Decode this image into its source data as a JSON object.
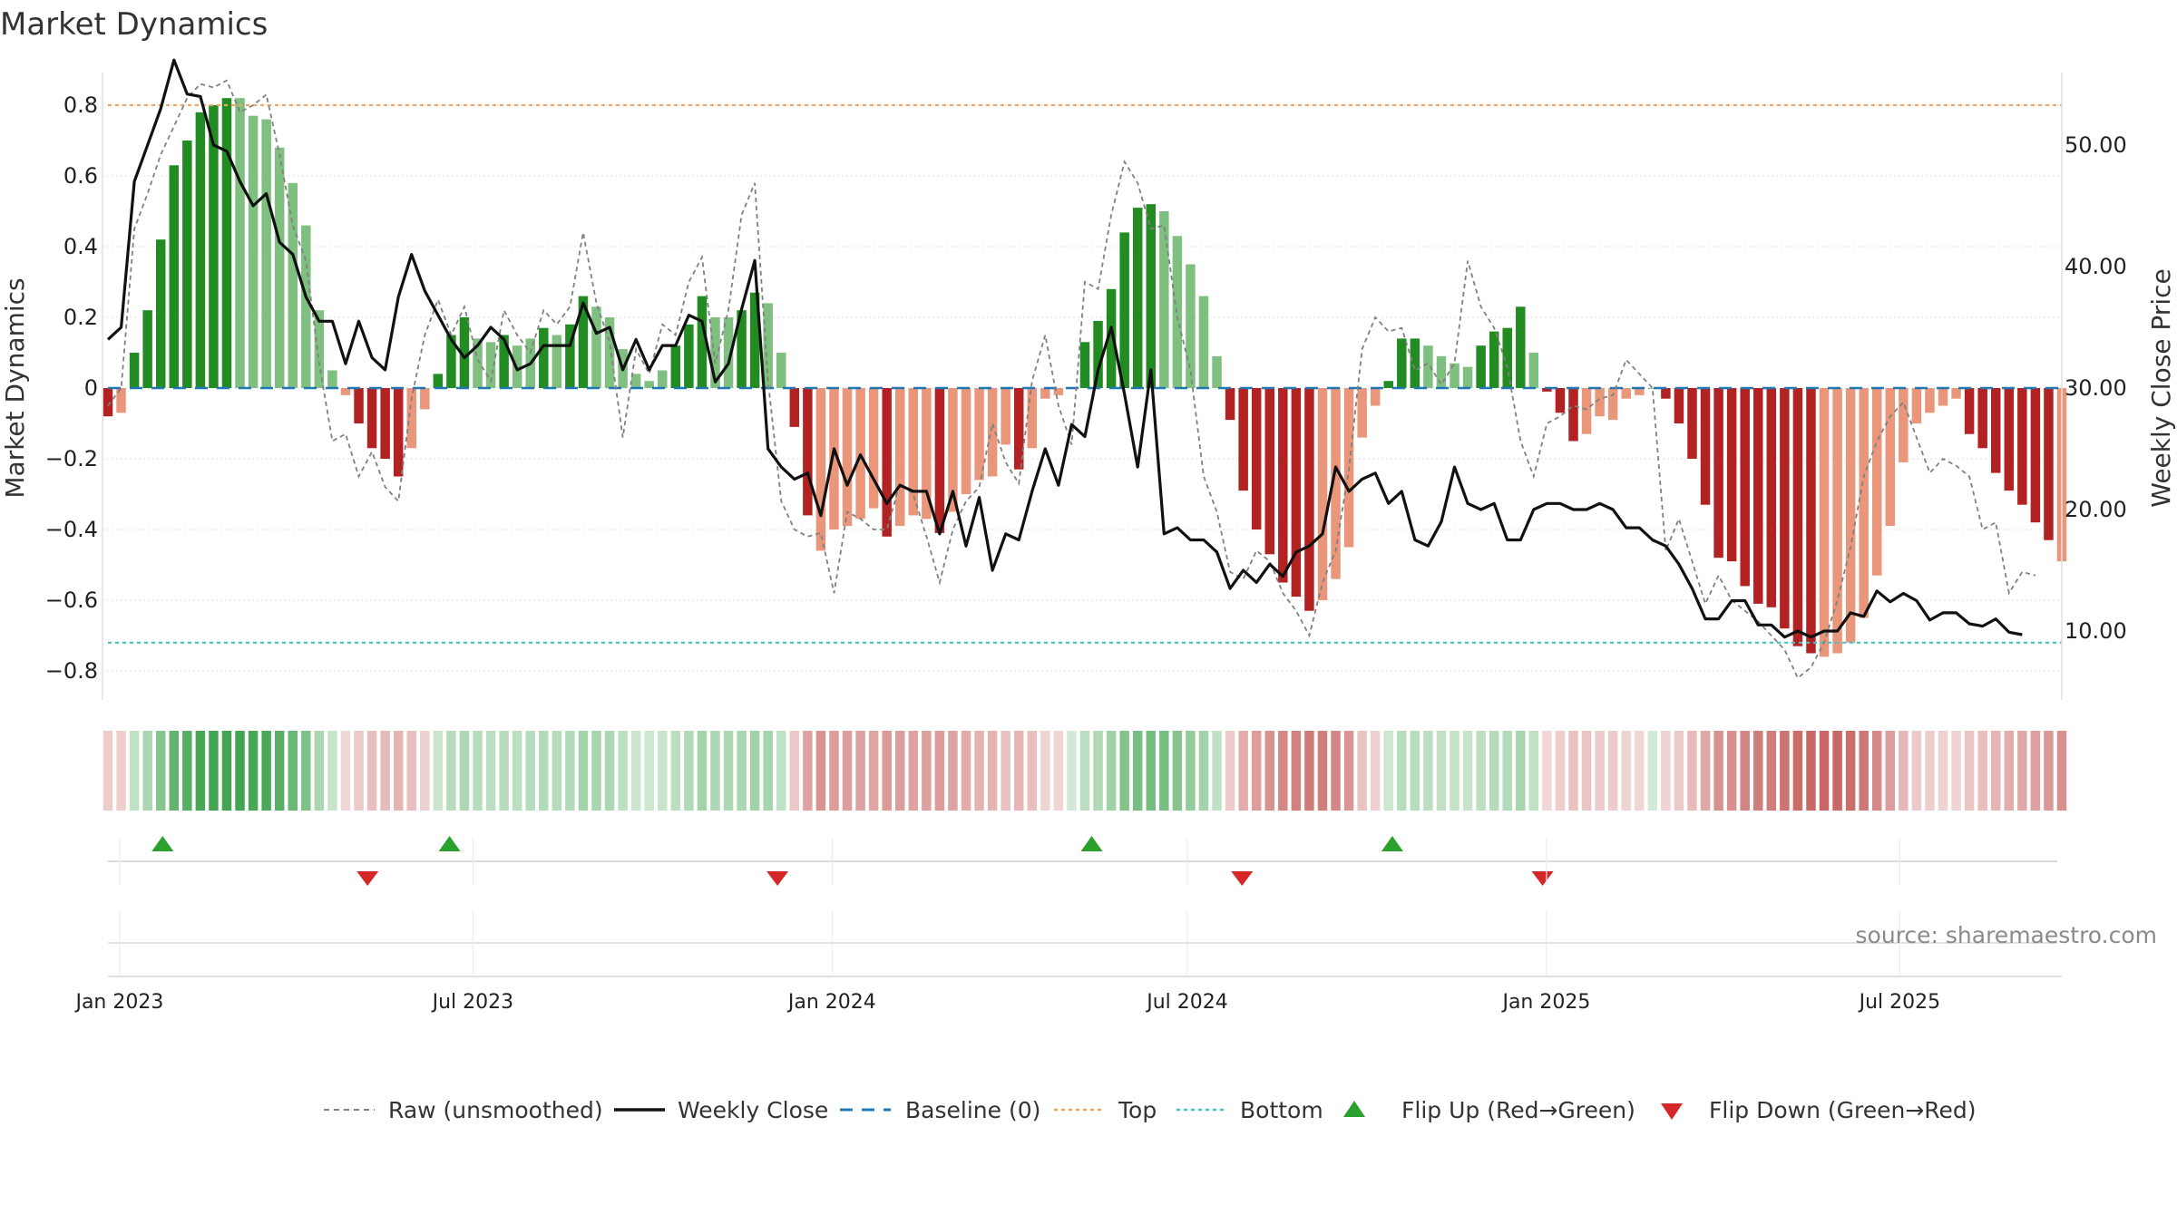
{
  "chart_data": {
    "type": "bar",
    "title": "Market Dynamics",
    "ylabel_left": "Market Dynamics",
    "ylabel_right": "Weekly Close Price",
    "ylim_left": [
      -0.9,
      0.9
    ],
    "ylim_right": [
      7.0,
      57.0
    ],
    "yticks_left": [
      "0.8",
      "0.6",
      "0.4",
      "0.2",
      "0",
      "−0.2",
      "−0.4",
      "−0.6",
      "−0.8"
    ],
    "yticks_left_values": [
      0.8,
      0.6,
      0.4,
      0.2,
      0,
      -0.2,
      -0.4,
      -0.6,
      -0.8
    ],
    "yticks_right": [
      "50.00",
      "40.00",
      "30.00",
      "20.00",
      "10.00"
    ],
    "yticks_right_values": [
      50,
      40,
      30,
      20,
      10
    ],
    "x_start": "2022-12-26",
    "x_end": "2025-09-22",
    "x_tick_labels": [
      "Jan 2023",
      "Jul 2023",
      "Jan 2024",
      "Jul 2024",
      "Jan 2025",
      "Jul 2025"
    ],
    "x_tick_dates": [
      "2023-01-01",
      "2023-07-01",
      "2024-01-01",
      "2024-07-01",
      "2025-01-01",
      "2025-07-01"
    ],
    "top_line": 0.8,
    "bottom_line": -0.72,
    "baseline": 0,
    "colors": {
      "strong_green": "#228b22",
      "light_green": "#7fbf7f",
      "strong_red": "#b22222",
      "light_red": "#e9967a",
      "raw": "#808080",
      "close": "#111111",
      "baseline": "#1f77b4",
      "top": "#f4a460",
      "bottom": "#40c4c4",
      "flip_up": "#2ca02c",
      "flip_down": "#d62728"
    },
    "bar_values": [
      -0.08,
      -0.07,
      0.1,
      0.22,
      0.42,
      0.63,
      0.7,
      0.78,
      0.8,
      0.82,
      0.82,
      0.77,
      0.76,
      0.68,
      0.58,
      0.46,
      0.22,
      0.05,
      -0.02,
      -0.1,
      -0.17,
      -0.2,
      -0.25,
      -0.17,
      -0.06,
      0.04,
      0.15,
      0.2,
      0.14,
      0.13,
      0.15,
      0.12,
      0.14,
      0.17,
      0.15,
      0.18,
      0.26,
      0.23,
      0.2,
      0.11,
      0.04,
      0.02,
      0.05,
      0.12,
      0.18,
      0.26,
      0.2,
      0.2,
      0.22,
      0.27,
      0.24,
      0.1,
      -0.11,
      -0.36,
      -0.46,
      -0.4,
      -0.39,
      -0.37,
      -0.34,
      -0.42,
      -0.39,
      -0.36,
      -0.37,
      -0.41,
      -0.35,
      -0.3,
      -0.26,
      -0.25,
      -0.16,
      -0.23,
      -0.17,
      -0.03,
      -0.02,
      0.0,
      0.13,
      0.19,
      0.28,
      0.44,
      0.51,
      0.52,
      0.5,
      0.43,
      0.35,
      0.26,
      0.09,
      -0.09,
      -0.29,
      -0.4,
      -0.47,
      -0.55,
      -0.59,
      -0.63,
      -0.6,
      -0.54,
      -0.45,
      -0.14,
      -0.05,
      0.02,
      0.14,
      0.14,
      0.12,
      0.09,
      0.07,
      0.06,
      0.12,
      0.16,
      0.17,
      0.23,
      0.1,
      -0.01,
      -0.07,
      -0.15,
      -0.13,
      -0.08,
      -0.09,
      -0.03,
      -0.02,
      0.0,
      -0.03,
      -0.1,
      -0.2,
      -0.33,
      -0.48,
      -0.49,
      -0.56,
      -0.61,
      -0.62,
      -0.68,
      -0.73,
      -0.75,
      -0.76,
      -0.75,
      -0.72,
      -0.65,
      -0.53,
      -0.39,
      -0.21,
      -0.1,
      -0.07,
      -0.05,
      -0.03,
      -0.13,
      -0.17,
      -0.24,
      -0.29,
      -0.33,
      -0.38,
      -0.43,
      -0.49
    ],
    "bar_colors": [
      "r",
      "l",
      "g",
      "g",
      "g",
      "g",
      "g",
      "g",
      "g",
      "g",
      "l",
      "l",
      "l",
      "l",
      "l",
      "l",
      "l",
      "l",
      "l",
      "r",
      "r",
      "r",
      "r",
      "l",
      "l",
      "g",
      "g",
      "g",
      "l",
      "l",
      "g",
      "l",
      "l",
      "g",
      "l",
      "g",
      "g",
      "l",
      "l",
      "l",
      "l",
      "l",
      "l",
      "g",
      "g",
      "g",
      "l",
      "l",
      "g",
      "g",
      "l",
      "l",
      "r",
      "r",
      "l",
      "l",
      "l",
      "l",
      "l",
      "r",
      "l",
      "l",
      "l",
      "r",
      "l",
      "l",
      "l",
      "l",
      "l",
      "r",
      "l",
      "l",
      "l",
      "l",
      "g",
      "g",
      "g",
      "g",
      "g",
      "g",
      "l",
      "l",
      "l",
      "l",
      "l",
      "r",
      "r",
      "r",
      "r",
      "r",
      "r",
      "r",
      "l",
      "l",
      "l",
      "l",
      "l",
      "g",
      "g",
      "g",
      "l",
      "l",
      "l",
      "l",
      "g",
      "g",
      "g",
      "g",
      "l",
      "r",
      "r",
      "r",
      "l",
      "l",
      "l",
      "l",
      "l",
      "l",
      "r",
      "r",
      "r",
      "r",
      "r",
      "r",
      "r",
      "r",
      "r",
      "r",
      "r",
      "r",
      "l",
      "l",
      "l",
      "l",
      "l",
      "l",
      "l",
      "l",
      "l",
      "l",
      "l",
      "r",
      "r",
      "r",
      "r",
      "r",
      "r",
      "r"
    ],
    "raw_values": [
      -0.05,
      0.0,
      0.45,
      0.55,
      0.66,
      0.74,
      0.82,
      0.86,
      0.85,
      0.87,
      0.78,
      0.8,
      0.83,
      0.66,
      0.46,
      0.36,
      0.07,
      -0.15,
      -0.13,
      -0.25,
      -0.18,
      -0.28,
      -0.32,
      -0.03,
      0.15,
      0.25,
      0.15,
      0.23,
      0.08,
      0.02,
      0.22,
      0.15,
      0.1,
      0.22,
      0.18,
      0.23,
      0.44,
      0.24,
      0.13,
      -0.14,
      0.11,
      0.04,
      0.18,
      0.15,
      0.3,
      0.37,
      0.07,
      0.22,
      0.49,
      0.58,
      0.02,
      -0.32,
      -0.4,
      -0.42,
      -0.41,
      -0.58,
      -0.35,
      -0.37,
      -0.4,
      -0.4,
      -0.27,
      -0.3,
      -0.42,
      -0.55,
      -0.4,
      -0.32,
      -0.28,
      -0.1,
      -0.21,
      -0.27,
      0.02,
      0.15,
      -0.05,
      -0.16,
      0.3,
      0.28,
      0.49,
      0.64,
      0.58,
      0.45,
      0.46,
      0.2,
      0.05,
      -0.25,
      -0.35,
      -0.52,
      -0.54,
      -0.46,
      -0.49,
      -0.58,
      -0.63,
      -0.7,
      -0.55,
      -0.46,
      -0.23,
      0.11,
      0.2,
      0.16,
      0.17,
      0.05,
      0.07,
      0.01,
      0.07,
      0.36,
      0.23,
      0.17,
      0.06,
      -0.15,
      -0.25,
      -0.1,
      -0.08,
      -0.05,
      -0.06,
      -0.03,
      -0.02,
      0.08,
      0.04,
      0.0,
      -0.46,
      -0.37,
      -0.49,
      -0.61,
      -0.53,
      -0.6,
      -0.63,
      -0.66,
      -0.7,
      -0.74,
      -0.82,
      -0.79,
      -0.72,
      -0.6,
      -0.45,
      -0.25,
      -0.15,
      -0.08,
      -0.04,
      -0.14,
      -0.24,
      -0.2,
      -0.22,
      -0.25,
      -0.4,
      -0.38,
      -0.58,
      -0.52,
      -0.53
    ],
    "close_values": [
      34.0,
      35.0,
      47.0,
      50.0,
      53.0,
      57.0,
      54.2,
      54.0,
      50.0,
      49.5,
      47.0,
      45.0,
      46.0,
      42.0,
      41.0,
      37.5,
      35.5,
      35.5,
      32.0,
      35.5,
      32.5,
      31.5,
      37.5,
      41.0,
      38.0,
      36.0,
      34.0,
      32.5,
      33.5,
      35.0,
      34.0,
      31.5,
      32.0,
      33.5,
      33.5,
      33.5,
      37.0,
      34.5,
      35.0,
      31.5,
      34.0,
      31.5,
      33.5,
      33.5,
      36.0,
      35.5,
      30.5,
      32.0,
      36.5,
      40.5,
      25.0,
      23.5,
      22.5,
      23.0,
      19.5,
      25.0,
      22.0,
      24.5,
      22.5,
      20.5,
      22.0,
      21.5,
      21.5,
      18.0,
      21.5,
      17.0,
      21.0,
      15.0,
      18.0,
      17.5,
      21.5,
      25.0,
      22.0,
      27.0,
      26.0,
      31.5,
      35.0,
      29.5,
      23.5,
      31.5,
      18.0,
      18.5,
      17.5,
      17.5,
      16.5,
      13.5,
      15.0,
      14.0,
      15.5,
      14.5,
      16.5,
      17.0,
      18.0,
      23.5,
      21.5,
      22.5,
      23.0,
      20.5,
      21.5,
      17.5,
      17.0,
      19.0,
      23.5,
      20.5,
      20.0,
      20.5,
      17.5,
      17.5,
      20.0,
      20.5,
      20.5,
      20.0,
      20.0,
      20.5,
      20.0,
      18.5,
      18.5,
      17.5,
      17.0,
      15.5,
      13.5,
      11.0,
      11.0,
      12.5,
      12.5,
      10.5,
      10.5,
      9.5,
      10.0,
      9.5,
      10.0,
      10.0,
      11.5,
      11.2,
      13.3,
      12.4,
      13.1,
      12.5,
      10.9,
      11.5,
      11.5,
      10.6,
      10.4,
      11.0,
      9.9,
      9.7
    ],
    "flips_up": [
      "2023-01-23",
      "2023-06-19",
      "2024-05-13",
      "2024-10-14"
    ],
    "flips_down": [
      "2023-05-08",
      "2023-12-04",
      "2024-07-29",
      "2024-12-30"
    ],
    "legend": {
      "raw": "Raw (unsmoothed)",
      "close": "Weekly Close",
      "baseline": "Baseline (0)",
      "top": "Top",
      "bottom": "Bottom",
      "flip_up": "Flip Up (Red→Green)",
      "flip_down": "Flip Down (Green→Red)"
    },
    "source": "source: sharemaestro.com"
  }
}
